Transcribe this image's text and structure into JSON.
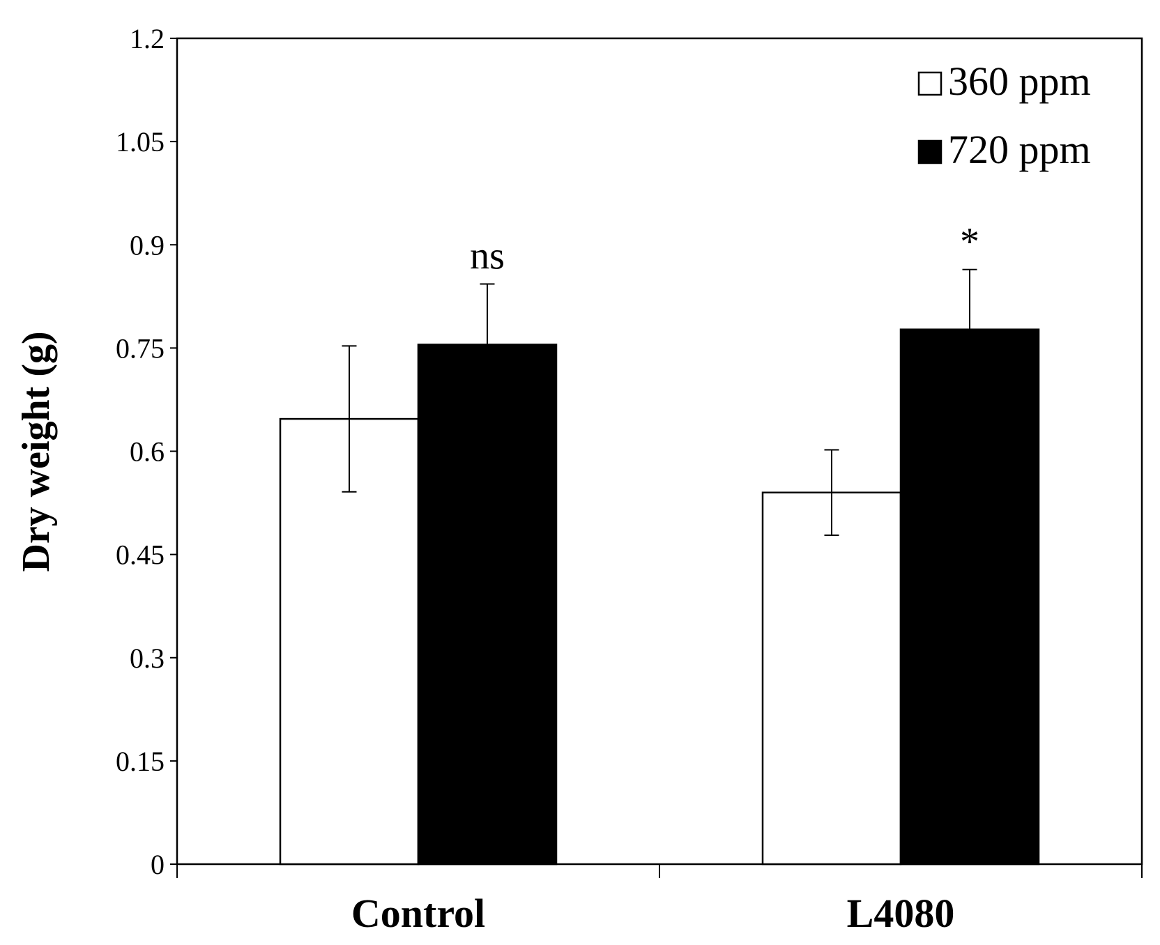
{
  "chart_data": {
    "type": "bar",
    "title": "",
    "xlabel": "",
    "ylabel": "Dry weight (g)",
    "ylim": [
      0,
      1.2
    ],
    "yticks": [
      "0",
      "0.15",
      "0.3",
      "0.45",
      "0.6",
      "0.75",
      "0.9",
      "1.05",
      "1.2"
    ],
    "categories": [
      "Control",
      "L4080"
    ],
    "series": [
      {
        "name": "360 ppm",
        "color": "#ffffff",
        "values": [
          0.647,
          0.54
        ],
        "errors": [
          0.106,
          0.062
        ]
      },
      {
        "name": "720 ppm",
        "color": "#000000",
        "values": [
          0.755,
          0.777
        ],
        "errors": [
          0.088,
          0.087
        ]
      }
    ],
    "annotations": [
      "ns",
      "*"
    ],
    "legend_position": "top-right",
    "grid": false
  }
}
